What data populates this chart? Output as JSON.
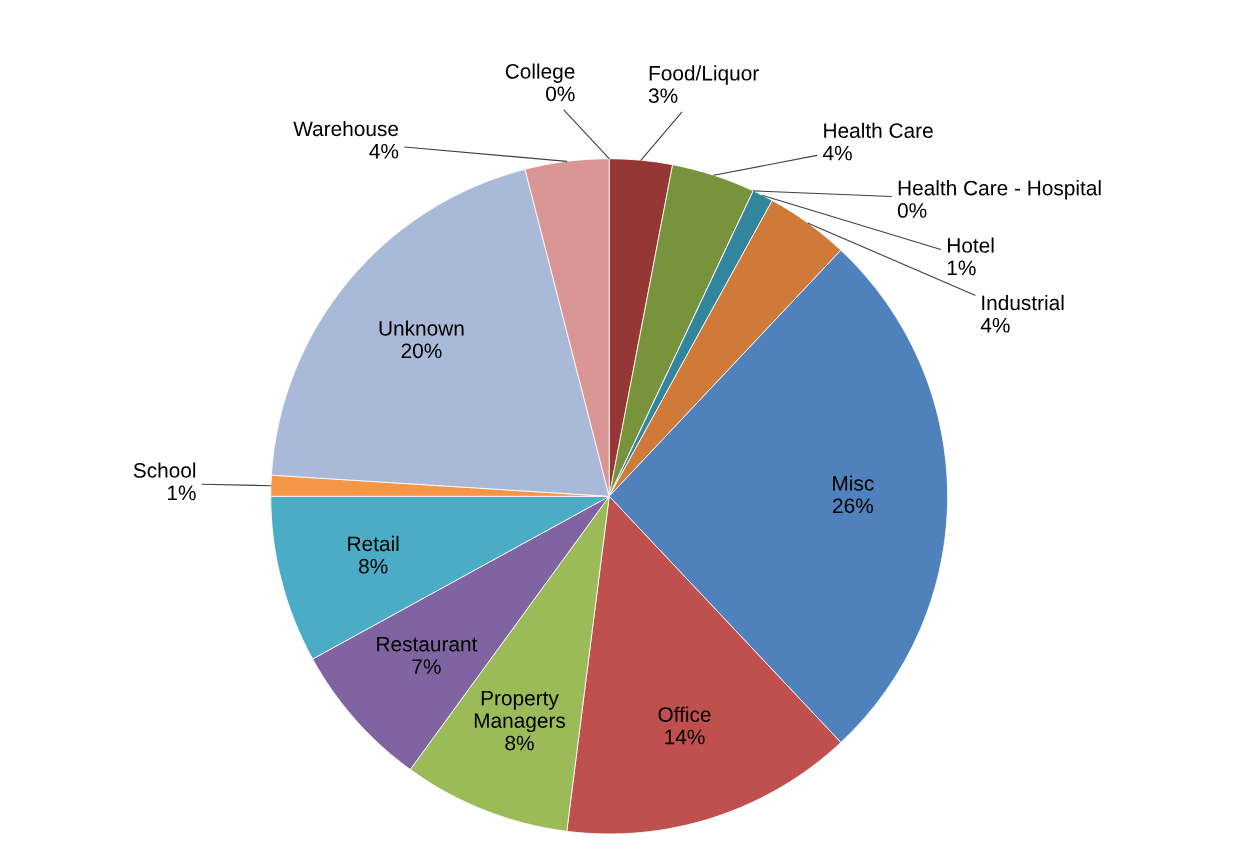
{
  "chart_data": {
    "type": "pie",
    "categories": [
      "College",
      "Food/Liquor",
      "Health Care",
      "Health Care - Hospital",
      "Hotel",
      "Industrial",
      "Misc",
      "Office",
      "Property Managers",
      "Restaurant",
      "Retail",
      "School",
      "Unknown",
      "Warehouse"
    ],
    "values": [
      0,
      3,
      4,
      0,
      1,
      4,
      26,
      14,
      8,
      7,
      8,
      1,
      20,
      4
    ],
    "value_labels": [
      "0%",
      "3%",
      "4%",
      "0%",
      "1%",
      "4%",
      "26%",
      "14%",
      "8%",
      "7%",
      "8%",
      "1%",
      "20%",
      "4%"
    ],
    "colors": [
      "#4f81bd",
      "#953735",
      "#77933c",
      "#604a7b",
      "#31859c",
      "#d07a3a",
      "#4f81bd",
      "#c0504d",
      "#9bbb59",
      "#8064a2",
      "#4bacc6",
      "#f79646",
      "#a9b9d8",
      "#d99694"
    ],
    "legend": false
  }
}
